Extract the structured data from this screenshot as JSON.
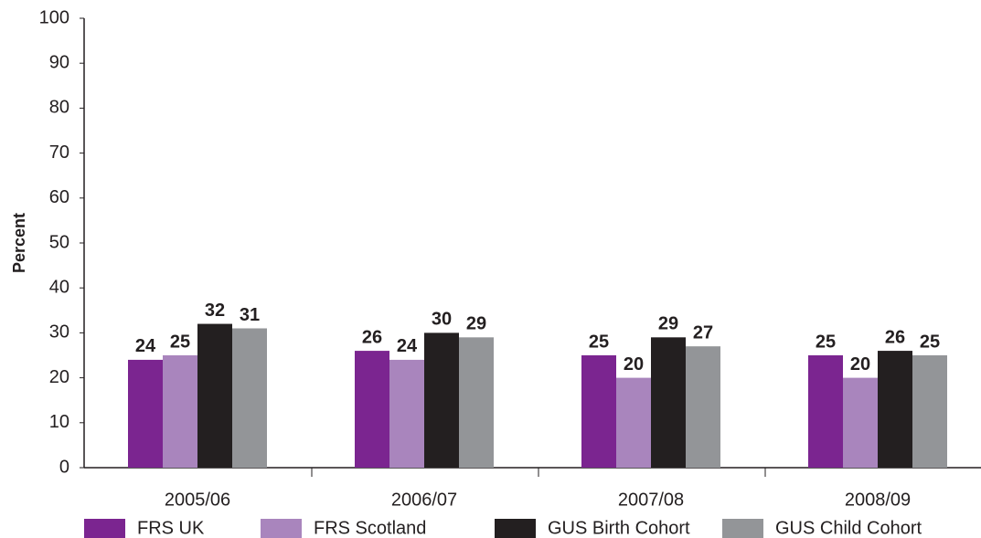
{
  "chart_data": {
    "type": "bar",
    "y_label": "Percent",
    "categories": [
      "2005/06",
      "2006/07",
      "2007/08",
      "2008/09"
    ],
    "series": [
      {
        "name": "FRS UK",
        "color": "#7b2590",
        "values": [
          24,
          26,
          25,
          25
        ]
      },
      {
        "name": "FRS Scotland",
        "color": "#a985bd",
        "values": [
          25,
          24,
          20,
          20
        ]
      },
      {
        "name": "GUS Birth Cohort",
        "color": "#231f20",
        "values": [
          32,
          30,
          29,
          26
        ]
      },
      {
        "name": "GUS Child Cohort",
        "color": "#939598",
        "values": [
          31,
          29,
          27,
          25
        ]
      }
    ],
    "ylim": [
      0,
      100
    ],
    "yticks": [
      0,
      10,
      20,
      30,
      40,
      50,
      60,
      70,
      80,
      90,
      100
    ],
    "grid": false,
    "legend": "bottom"
  }
}
